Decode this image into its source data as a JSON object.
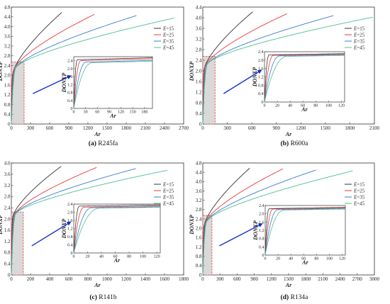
{
  "colors": {
    "E15": "#333333",
    "E25": "#e8383b",
    "E35": "#3a7bd5",
    "E45": "#4cc08c",
    "arrow": "#1130d6",
    "dash": "#e8383b",
    "shade": "#d9d9d9"
  },
  "legend_labels": [
    "E=15",
    "E=25",
    "E=35",
    "E=45"
  ],
  "chart_data": [
    {
      "type": "line",
      "caption_prefix": "(a)",
      "caption_name": "R245fa",
      "xlabel": "Ar",
      "ylabel": "DONXP",
      "xlim": [
        0,
        2700
      ],
      "ylim": [
        0,
        4.8
      ],
      "xticks": [
        0,
        300,
        600,
        900,
        1200,
        1500,
        1800,
        2100,
        2400,
        2700
      ],
      "yticks": [
        0,
        0.4,
        0.8,
        1.2,
        1.6,
        2.0,
        2.4,
        2.8,
        3.2,
        3.6,
        4.0,
        4.4,
        4.8
      ],
      "zoom_xmax": 200,
      "series": [
        {
          "name": "E=15",
          "plateau": 2.1,
          "xmax": 790,
          "yend": 4.58
        },
        {
          "name": "E=25",
          "plateau": 2.25,
          "xmax": 1300,
          "yend": 4.5
        },
        {
          "name": "E=35",
          "plateau": 2.3,
          "xmax": 1960,
          "yend": 4.45
        },
        {
          "name": "E=45",
          "plateau": 2.35,
          "xmax": 2550,
          "yend": 4.35
        }
      ],
      "inset": {
        "xlabel": "Ar",
        "ylabel": "DONXP",
        "xlim": [
          0,
          200
        ],
        "ylim": [
          0,
          2.6
        ],
        "xticks": [
          0,
          30,
          60,
          90,
          120,
          150,
          180
        ],
        "yticks": [
          0,
          0.4,
          0.8,
          1.2,
          1.6,
          2.0,
          2.4
        ],
        "series": [
          {
            "name": "E=15",
            "plateau": 2.45,
            "knee": 9
          },
          {
            "name": "E=25",
            "plateau": 2.4,
            "knee": 18
          },
          {
            "name": "E=35",
            "plateau": 2.33,
            "knee": 32
          },
          {
            "name": "E=45",
            "plateau": 2.3,
            "knee": 48
          }
        ]
      }
    },
    {
      "type": "line",
      "caption_prefix": "(b)",
      "caption_name": "R600a",
      "xlabel": "Ar",
      "ylabel": "DONXP",
      "xlim": [
        0,
        2100
      ],
      "ylim": [
        0,
        4.4
      ],
      "xticks": [
        0,
        300,
        600,
        900,
        1200,
        1500,
        1800,
        2100
      ],
      "yticks": [
        0,
        0.4,
        0.8,
        1.2,
        1.6,
        2.0,
        2.4,
        2.8,
        3.2,
        3.6,
        4.0,
        4.4
      ],
      "zoom_xmax": 150,
      "series": [
        {
          "name": "E=15",
          "plateau": 2.1,
          "xmax": 610,
          "yend": 4.22
        },
        {
          "name": "E=25",
          "plateau": 2.2,
          "xmax": 1030,
          "yend": 4.15
        },
        {
          "name": "E=35",
          "plateau": 2.25,
          "xmax": 1600,
          "yend": 4.08
        },
        {
          "name": "E=45",
          "plateau": 2.3,
          "xmax": 2080,
          "yend": 4.02
        }
      ],
      "inset": {
        "xlabel": "Ar",
        "ylabel": "DONXP",
        "xlim": [
          0,
          125
        ],
        "ylim": [
          0,
          2.4
        ],
        "xticks": [
          0,
          20,
          40,
          60,
          80,
          100,
          120
        ],
        "yticks": [
          0,
          0.4,
          0.8,
          1.2,
          1.6,
          2.0,
          2.4
        ],
        "series": [
          {
            "name": "E=15",
            "plateau": 2.25,
            "knee": 7
          },
          {
            "name": "E=25",
            "plateau": 2.23,
            "knee": 14
          },
          {
            "name": "E=35",
            "plateau": 2.2,
            "knee": 24
          },
          {
            "name": "E=45",
            "plateau": 2.18,
            "knee": 36
          }
        ]
      }
    },
    {
      "type": "line",
      "caption_prefix": "(c)",
      "caption_name": "R141b",
      "xlabel": "Ar",
      "ylabel": "DONXP",
      "xlim": [
        0,
        1800
      ],
      "ylim": [
        0,
        4.0
      ],
      "xticks": [
        0,
        200,
        400,
        600,
        800,
        1000,
        1200,
        1400,
        1600,
        1800
      ],
      "yticks": [
        0,
        0.4,
        0.8,
        1.2,
        1.6,
        2.0,
        2.4,
        2.8,
        3.2,
        3.6,
        4.0
      ],
      "zoom_xmax": 125,
      "series": [
        {
          "name": "E=15",
          "plateau": 2.1,
          "xmax": 520,
          "yend": 3.88
        },
        {
          "name": "E=25",
          "plateau": 2.15,
          "xmax": 890,
          "yend": 3.84
        },
        {
          "name": "E=35",
          "plateau": 2.2,
          "xmax": 1300,
          "yend": 3.8
        },
        {
          "name": "E=45",
          "plateau": 2.22,
          "xmax": 1630,
          "yend": 3.74
        }
      ],
      "inset": {
        "xlabel": "Ar",
        "ylabel": "DONXP",
        "xlim": [
          0,
          125
        ],
        "ylim": [
          0,
          2.4
        ],
        "xticks": [
          0,
          20,
          40,
          60,
          80,
          100,
          120
        ],
        "yticks": [
          0,
          0.4,
          0.8,
          1.2,
          1.6,
          2.0,
          2.4
        ],
        "series": [
          {
            "name": "E=15",
            "plateau": 2.3,
            "knee": 8
          },
          {
            "name": "E=25",
            "plateau": 2.25,
            "knee": 15
          },
          {
            "name": "E=35",
            "plateau": 2.22,
            "knee": 26
          },
          {
            "name": "E=45",
            "plateau": 2.2,
            "knee": 38
          }
        ]
      }
    },
    {
      "type": "line",
      "caption_prefix": "(d)",
      "caption_name": "R134a",
      "xlabel": "Ar",
      "ylabel": "DONXP",
      "xlim": [
        0,
        3000
      ],
      "ylim": [
        0,
        4.8
      ],
      "xticks": [
        0,
        300,
        600,
        900,
        1200,
        1500,
        1800,
        2100,
        2400,
        2700,
        3000
      ],
      "yticks": [
        0,
        0.4,
        0.8,
        1.2,
        1.6,
        2.0,
        2.4,
        2.8,
        3.2,
        3.6,
        4.0,
        4.4,
        4.8
      ],
      "zoom_xmax": 160,
      "series": [
        {
          "name": "E=15",
          "plateau": 2.15,
          "xmax": 820,
          "yend": 4.58
        },
        {
          "name": "E=25",
          "plateau": 2.25,
          "xmax": 1400,
          "yend": 4.55
        },
        {
          "name": "E=35",
          "plateau": 2.3,
          "xmax": 1980,
          "yend": 4.5
        },
        {
          "name": "E=45",
          "plateau": 2.35,
          "xmax": 2620,
          "yend": 4.46
        }
      ],
      "inset": {
        "xlabel": "Ar",
        "ylabel": "DONXP",
        "xlim": [
          0,
          125
        ],
        "ylim": [
          0,
          2.4
        ],
        "xticks": [
          0,
          20,
          40,
          60,
          80,
          100,
          120
        ],
        "yticks": [
          0,
          0.4,
          0.8,
          1.2,
          1.6,
          2.0,
          2.4
        ],
        "series": [
          {
            "name": "E=15",
            "plateau": 2.25,
            "knee": 6
          },
          {
            "name": "E=25",
            "plateau": 2.23,
            "knee": 12
          },
          {
            "name": "E=35",
            "plateau": 2.2,
            "knee": 20
          },
          {
            "name": "E=45",
            "plateau": 2.18,
            "knee": 30
          }
        ]
      }
    }
  ]
}
